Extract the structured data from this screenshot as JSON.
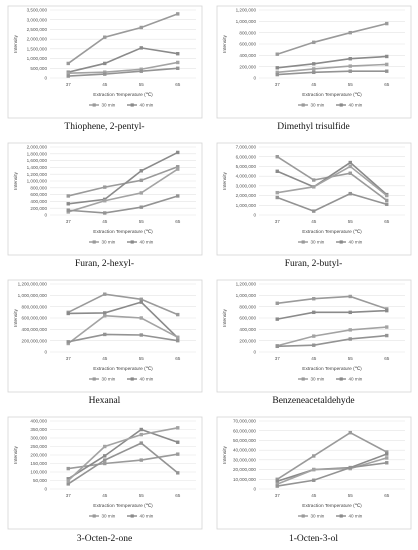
{
  "chart_data": [
    {
      "type": "line",
      "title": "Thiophene, 2-pentyl-",
      "xlabel": "Extraction Temperature (℃)",
      "ylabel": "Intensity",
      "categories": [
        "37",
        "45",
        "55",
        "65"
      ],
      "ylim": [
        0,
        3500000
      ],
      "yticks": [
        "0",
        "500,000",
        "1,000,000",
        "1,500,000",
        "2,000,000",
        "2,500,000",
        "3,000,000",
        "3,500,000"
      ],
      "legend": [
        "30 min",
        "40 min"
      ],
      "legend_position": "bottom",
      "series": [
        {
          "values": [
            750000,
            2100000,
            2600000,
            3300000
          ]
        },
        {
          "values": [
            300000,
            750000,
            1550000,
            1250000
          ]
        },
        {
          "values": [
            250000,
            300000,
            450000,
            800000
          ]
        },
        {
          "values": [
            100000,
            200000,
            350000,
            500000
          ]
        }
      ]
    },
    {
      "type": "line",
      "title": "Dimethyl trisulfide",
      "xlabel": "Extraction Temperature (℃)",
      "ylabel": "Intensity",
      "categories": [
        "37",
        "45",
        "55",
        "65"
      ],
      "ylim": [
        0,
        1200000
      ],
      "yticks": [
        "0",
        "200,000",
        "400,000",
        "600,000",
        "800,000",
        "1,000,000",
        "1,200,000"
      ],
      "legend": [
        "30 min",
        "40 min"
      ],
      "legend_position": "bottom",
      "series": [
        {
          "values": [
            420000,
            630000,
            800000,
            960000
          ]
        },
        {
          "values": [
            180000,
            250000,
            340000,
            380000
          ]
        },
        {
          "values": [
            100000,
            160000,
            210000,
            240000
          ]
        },
        {
          "values": [
            60000,
            100000,
            120000,
            120000
          ]
        }
      ]
    },
    {
      "type": "line",
      "title": "Furan, 2-hexyl-",
      "xlabel": "Extraction Temperature (℃)",
      "ylabel": "Intensity",
      "categories": [
        "37",
        "45",
        "55",
        "65"
      ],
      "ylim": [
        0,
        2000000
      ],
      "yticks": [
        "0",
        "200,000",
        "400,000",
        "600,000",
        "800,000",
        "1,000,000",
        "1,200,000",
        "1,400,000",
        "1,600,000",
        "1,800,000",
        "2,000,000"
      ],
      "legend": [
        "30 min",
        "40 min"
      ],
      "legend_position": "bottom",
      "series": [
        {
          "values": [
            560000,
            820000,
            1020000,
            1420000
          ]
        },
        {
          "values": [
            330000,
            460000,
            1300000,
            1840000
          ]
        },
        {
          "values": [
            90000,
            420000,
            650000,
            1350000
          ]
        },
        {
          "values": [
            140000,
            60000,
            230000,
            560000
          ]
        }
      ]
    },
    {
      "type": "line",
      "title": "Furan, 2-butyl-",
      "xlabel": "Extraction Temperature (℃)",
      "ylabel": "Intensity",
      "categories": [
        "37",
        "45",
        "55",
        "65"
      ],
      "ylim": [
        0,
        7000000
      ],
      "yticks": [
        "0",
        "1,000,000",
        "2,000,000",
        "3,000,000",
        "4,000,000",
        "5,000,000",
        "6,000,000",
        "7,000,000"
      ],
      "legend": [
        "30 min",
        "40 min"
      ],
      "legend_position": "bottom",
      "series": [
        {
          "values": [
            6000000,
            3600000,
            4300000,
            1500000
          ]
        },
        {
          "values": [
            4500000,
            2900000,
            5400000,
            2100000
          ]
        },
        {
          "values": [
            2300000,
            2900000,
            5000000,
            2000000
          ]
        },
        {
          "values": [
            1800000,
            400000,
            2200000,
            1100000
          ]
        }
      ]
    },
    {
      "type": "line",
      "title": "Hexanal",
      "xlabel": "Extraction Temperature (℃)",
      "ylabel": "Intensity",
      "categories": [
        "37",
        "45",
        "55",
        "65"
      ],
      "ylim": [
        0,
        1200000000
      ],
      "yticks": [
        "0",
        "200,000,000",
        "400,000,000",
        "600,000,000",
        "800,000,000",
        "1,000,000,000",
        "1,200,000,000"
      ],
      "legend": [
        "30 min",
        "40 min"
      ],
      "legend_position": "bottom",
      "series": [
        {
          "values": [
            700000000,
            1020000000,
            930000000,
            660000000
          ]
        },
        {
          "values": [
            680000000,
            690000000,
            880000000,
            250000000
          ]
        },
        {
          "values": [
            150000000,
            640000000,
            600000000,
            260000000
          ]
        },
        {
          "values": [
            180000000,
            310000000,
            300000000,
            200000000
          ]
        }
      ]
    },
    {
      "type": "line",
      "title": "Benzeneacetaldehyde",
      "xlabel": "Extraction Temperature (℃)",
      "ylabel": "Intensity",
      "categories": [
        "37",
        "45",
        "55",
        "65"
      ],
      "ylim": [
        0,
        1200000
      ],
      "yticks": [
        "0",
        "200,000",
        "400,000",
        "600,000",
        "800,000",
        "1,000,000",
        "1,200,000"
      ],
      "legend": [
        "30 min",
        "40 min"
      ],
      "legend_position": "bottom",
      "series": [
        {
          "values": [
            860000,
            940000,
            980000,
            760000
          ]
        },
        {
          "values": [
            580000,
            700000,
            700000,
            730000
          ]
        },
        {
          "values": [
            110000,
            280000,
            390000,
            440000
          ]
        },
        {
          "values": [
            100000,
            120000,
            230000,
            290000
          ]
        }
      ]
    },
    {
      "type": "line",
      "title": "3-Octen-2-one",
      "xlabel": "Extraction Temperature (℃)",
      "ylabel": "Intensity",
      "categories": [
        "37",
        "45",
        "55",
        "65"
      ],
      "ylim": [
        0,
        400000
      ],
      "yticks": [
        "0",
        "50,000",
        "100,000",
        "150,000",
        "200,000",
        "250,000",
        "300,000",
        "350,000",
        "400,000"
      ],
      "legend": [
        "30 min",
        "40 min"
      ],
      "legend_position": "bottom",
      "series": [
        {
          "values": [
            120000,
            150000,
            170000,
            205000
          ]
        },
        {
          "values": [
            60000,
            195000,
            350000,
            275000
          ]
        },
        {
          "values": [
            50000,
            250000,
            320000,
            360000
          ]
        },
        {
          "values": [
            30000,
            170000,
            270000,
            95000
          ]
        }
      ]
    },
    {
      "type": "line",
      "title": "1-Octen-3-ol",
      "xlabel": "Extraction Temperature (℃)",
      "ylabel": "Intensity",
      "categories": [
        "37",
        "45",
        "55",
        "65"
      ],
      "ylim": [
        0,
        70000000
      ],
      "yticks": [
        "0",
        "10,000,000",
        "20,000,000",
        "30,000,000",
        "40,000,000",
        "50,000,000",
        "60,000,000",
        "70,000,000"
      ],
      "legend": [
        "30 min",
        "40 min"
      ],
      "legend_position": "bottom",
      "series": [
        {
          "values": [
            10000000,
            34000000,
            58000000,
            38000000
          ]
        },
        {
          "values": [
            8000000,
            20000000,
            22000000,
            36000000
          ]
        },
        {
          "values": [
            5000000,
            20000000,
            21000000,
            32000000
          ]
        },
        {
          "values": [
            3000000,
            9000000,
            22000000,
            27000000
          ]
        }
      ]
    }
  ],
  "colors": {
    "series": [
      "#9a9a9a",
      "#8a8a8a",
      "#a3a3a3",
      "#939393"
    ],
    "frame": "#d4d4d4",
    "grid": "#e3e3e3"
  }
}
